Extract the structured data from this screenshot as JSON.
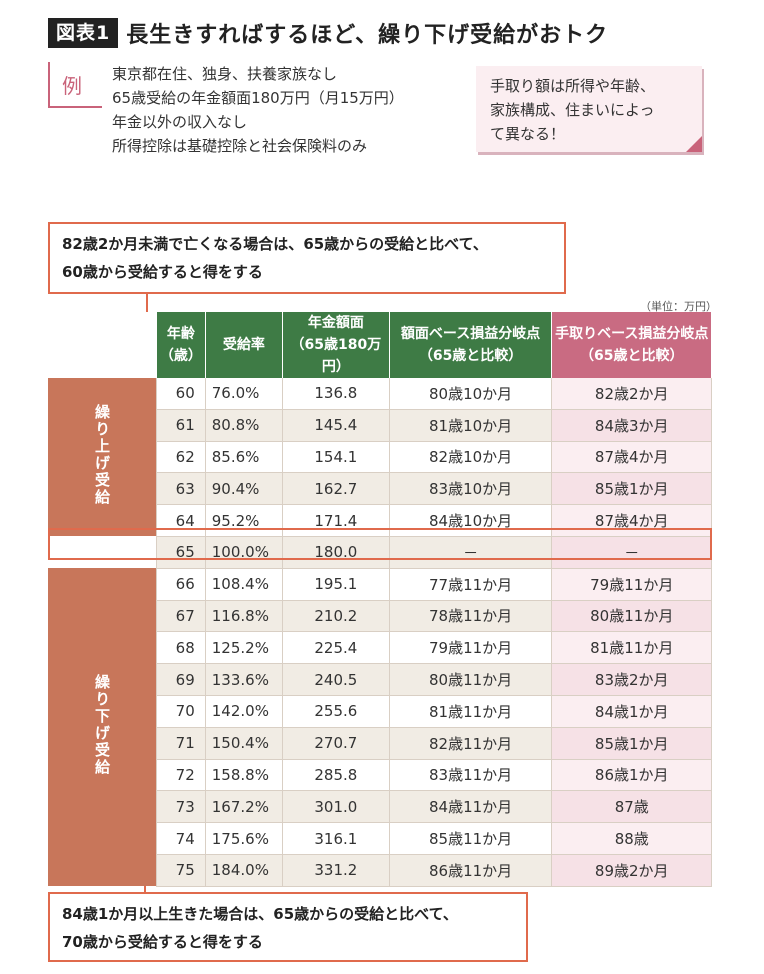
{
  "title": {
    "label": "図表1",
    "text": "長生きすればするほど、繰り下げ受給がおトク"
  },
  "example": {
    "label": "例",
    "lines": [
      "東京都在住、独身、扶養家族なし",
      "65歳受給の年金額面180万円（月15万円）",
      "年金以外の収入なし",
      "所得控除は基礎控除と社会保険料のみ"
    ]
  },
  "note": {
    "lines": [
      "手取り額は所得や年齢、",
      "家族構成、住まいによっ",
      "て異なる！"
    ]
  },
  "callouts": {
    "top": [
      "82歳2か月未満で亡くなる場合は、65歳からの受給と比べて、",
      "60歳から受給すると得をする"
    ],
    "bottom": [
      "84歳1か月以上生きた場合は、65歳からの受給と比べて、",
      "70歳から受給すると得をする"
    ]
  },
  "unit": "（単位：万円）",
  "table": {
    "headers": {
      "age": [
        "年齢",
        "（歳）"
      ],
      "rate": "受給率",
      "amount": [
        "年金額面",
        "（65歳180万円）"
      ],
      "gross": [
        "額面ベース損益分岐点",
        "（65歳と比較）"
      ],
      "net": [
        "手取りベース損益分岐点",
        "（65歳と比較）"
      ]
    },
    "groups": {
      "early": "繰り上げ受給",
      "late": "繰り下げ受給"
    },
    "rows": [
      {
        "age": "60",
        "rate": "76.0%",
        "amount": "136.8",
        "gross": "80歳10か月",
        "net": "82歳2か月"
      },
      {
        "age": "61",
        "rate": "80.8%",
        "amount": "145.4",
        "gross": "81歳10か月",
        "net": "84歳3か月"
      },
      {
        "age": "62",
        "rate": "85.6%",
        "amount": "154.1",
        "gross": "82歳10か月",
        "net": "87歳4か月"
      },
      {
        "age": "63",
        "rate": "90.4%",
        "amount": "162.7",
        "gross": "83歳10か月",
        "net": "85歳1か月"
      },
      {
        "age": "64",
        "rate": "95.2%",
        "amount": "171.4",
        "gross": "84歳10か月",
        "net": "87歳4か月"
      },
      {
        "age": "65",
        "rate": "100.0%",
        "amount": "180.0",
        "gross": "－",
        "net": "－"
      },
      {
        "age": "66",
        "rate": "108.4%",
        "amount": "195.1",
        "gross": "77歳11か月",
        "net": "79歳11か月"
      },
      {
        "age": "67",
        "rate": "116.8%",
        "amount": "210.2",
        "gross": "78歳11か月",
        "net": "80歳11か月"
      },
      {
        "age": "68",
        "rate": "125.2%",
        "amount": "225.4",
        "gross": "79歳11か月",
        "net": "81歳11か月"
      },
      {
        "age": "69",
        "rate": "133.6%",
        "amount": "240.5",
        "gross": "80歳11か月",
        "net": "83歳2か月"
      },
      {
        "age": "70",
        "rate": "142.0%",
        "amount": "255.6",
        "gross": "81歳11か月",
        "net": "84歳1か月"
      },
      {
        "age": "71",
        "rate": "150.4%",
        "amount": "270.7",
        "gross": "82歳11か月",
        "net": "85歳1か月"
      },
      {
        "age": "72",
        "rate": "158.8%",
        "amount": "285.8",
        "gross": "83歳11か月",
        "net": "86歳1か月"
      },
      {
        "age": "73",
        "rate": "167.2%",
        "amount": "301.0",
        "gross": "84歳11か月",
        "net": "87歳"
      },
      {
        "age": "74",
        "rate": "175.6%",
        "amount": "316.1",
        "gross": "85歳11か月",
        "net": "88歳"
      },
      {
        "age": "75",
        "rate": "184.0%",
        "amount": "331.2",
        "gross": "86歳11か月",
        "net": "89歳2か月"
      }
    ]
  }
}
